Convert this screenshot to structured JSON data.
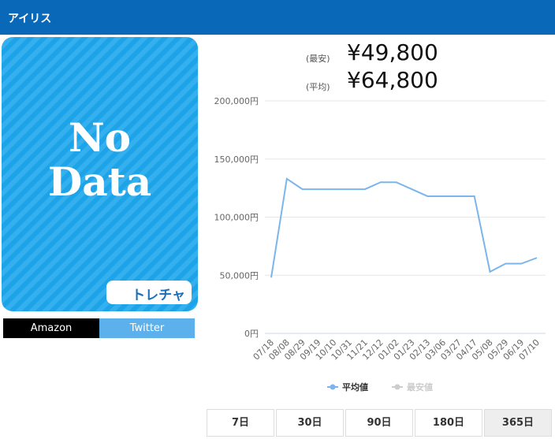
{
  "header": {
    "title": "アイリス"
  },
  "image": {
    "line1": "No",
    "line2": "Data",
    "logo": "トレチャ"
  },
  "links": [
    "Amazon",
    "Twitter"
  ],
  "prices": [
    {
      "label": "(最安)",
      "value": "¥49,800"
    },
    {
      "label": "(平均)",
      "value": "¥64,800"
    }
  ],
  "chart_data": {
    "type": "line",
    "categories": [
      "07/18",
      "08/08",
      "08/29",
      "09/19",
      "10/10",
      "10/31",
      "11/21",
      "12/12",
      "01/02",
      "01/23",
      "02/13",
      "03/06",
      "03/27",
      "04/17",
      "05/08",
      "05/29",
      "06/19",
      "07/10"
    ],
    "series": [
      {
        "name": "平均値",
        "color": "#7cb5ec",
        "values": [
          48000,
          133000,
          124000,
          124000,
          124000,
          124000,
          124000,
          130000,
          130000,
          124000,
          118000,
          118000,
          118000,
          118000,
          53000,
          60000,
          60000,
          65000
        ]
      },
      {
        "name": "最安値",
        "color": "#cccccc",
        "values": [
          null,
          null,
          null,
          null,
          null,
          null,
          null,
          null,
          null,
          null,
          null,
          null,
          null,
          null,
          null,
          null,
          null,
          null
        ]
      }
    ],
    "ylim": [
      0,
      200000
    ],
    "yticks": [
      {
        "value": 0,
        "label": "0円"
      },
      {
        "value": 50000,
        "label": "50,000円"
      },
      {
        "value": 100000,
        "label": "100,000円"
      },
      {
        "value": 150000,
        "label": "150,000円"
      },
      {
        "value": 200000,
        "label": "200,000円"
      }
    ],
    "grid": true
  },
  "ranges": [
    "7日",
    "30日",
    "90日",
    "180日",
    "365日"
  ]
}
